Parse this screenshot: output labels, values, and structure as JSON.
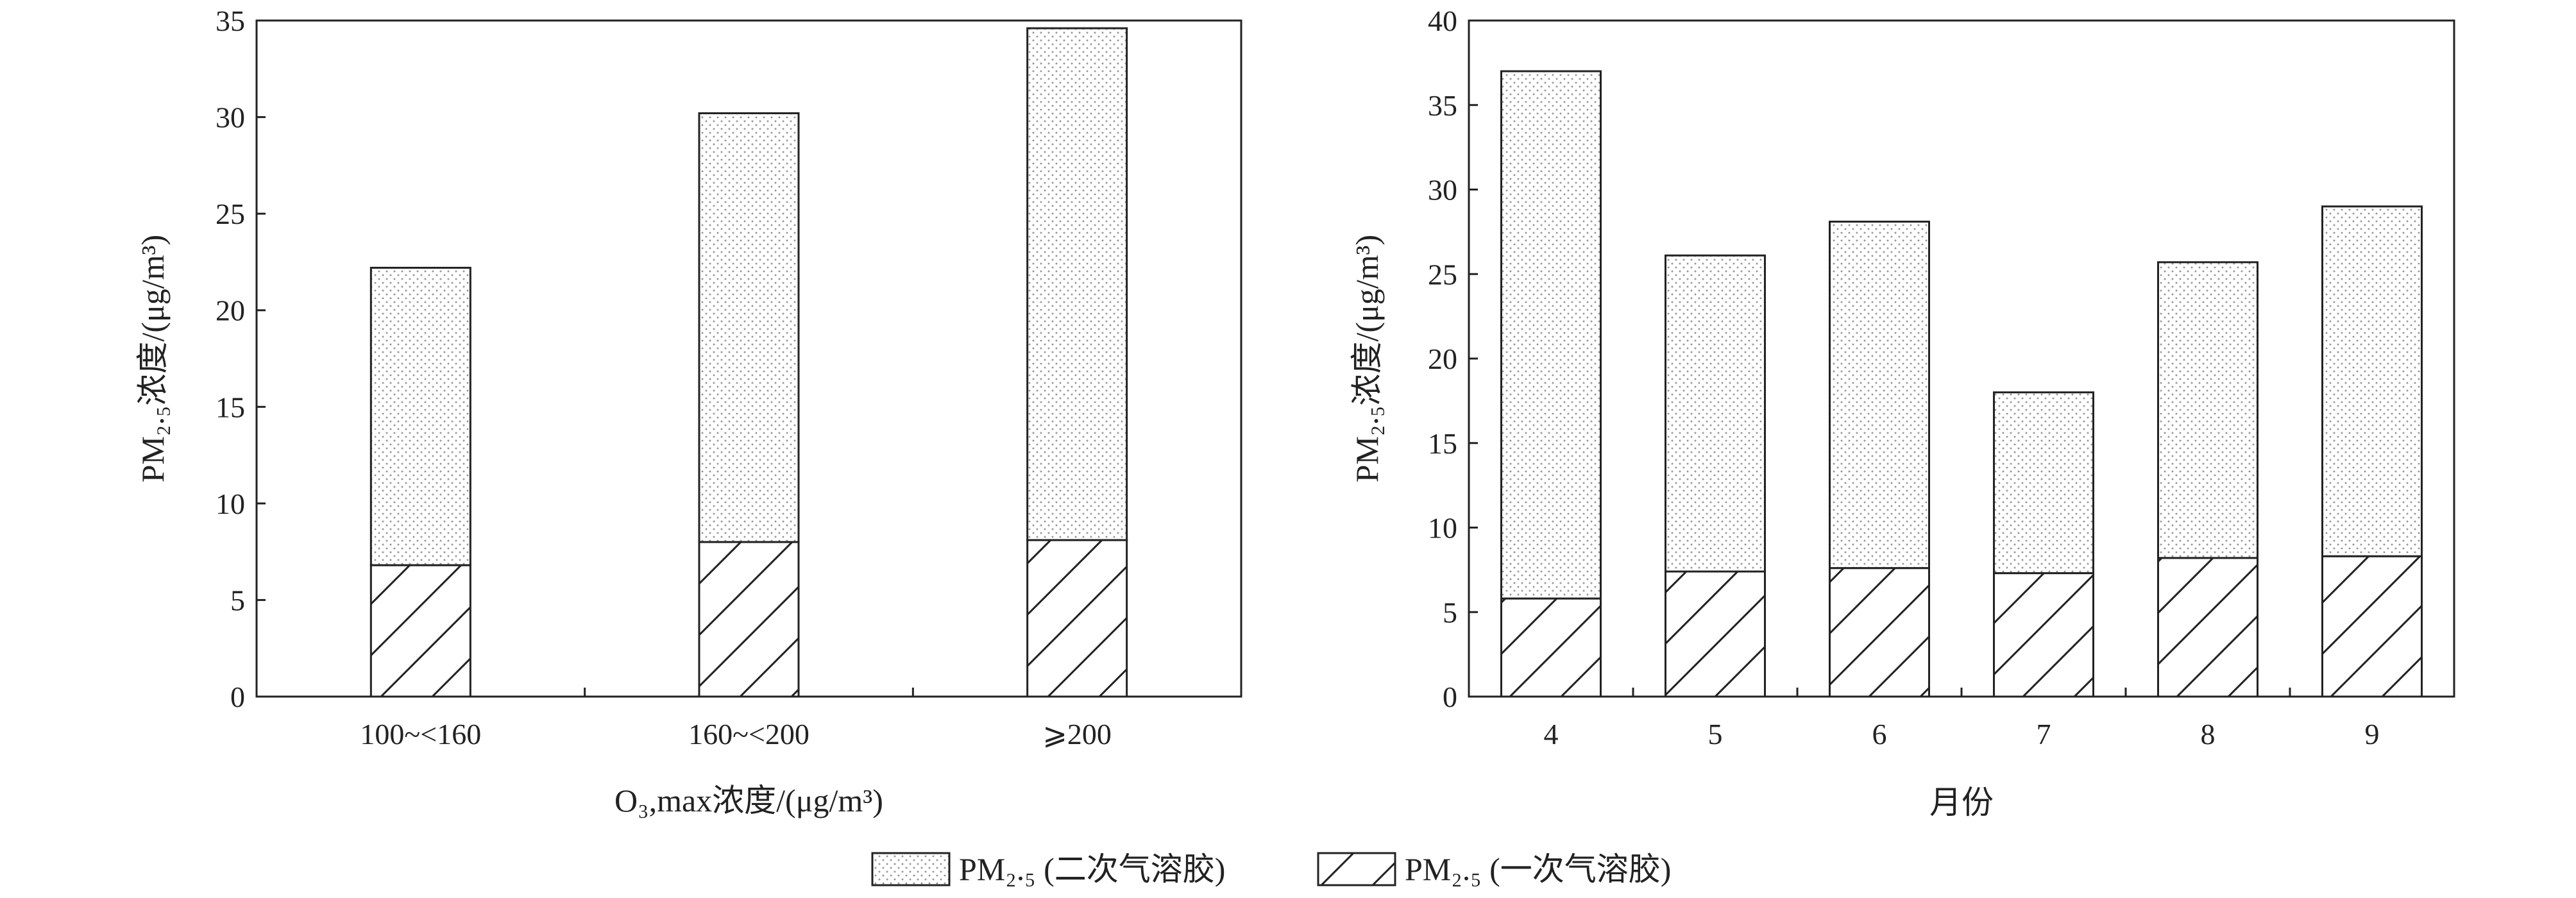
{
  "legend": {
    "secondary_label": "PM₂.₅ (二次气溶胶)",
    "primary_label": "PM₂.₅ (一次气溶胶)"
  },
  "chart_data": [
    {
      "type": "bar",
      "stacked": true,
      "categories": [
        "100~<160",
        "160~<200",
        "⩾200"
      ],
      "series": [
        {
          "name": "PM₂.₅ (一次气溶胶)",
          "pattern": "diagonal-hatch",
          "values": [
            6.8,
            8.0,
            8.1
          ]
        },
        {
          "name": "PM₂.₅ (二次气溶胶)",
          "pattern": "dots",
          "values": [
            15.4,
            22.2,
            26.5
          ]
        }
      ],
      "totals": [
        22.2,
        30.2,
        34.6
      ],
      "xlabel": "O₃,max浓度/(μg/m³)",
      "ylabel": "PM₂.₅浓度/(μg/m³)",
      "ylim": [
        0,
        35
      ],
      "yticks": [
        0,
        5,
        10,
        15,
        20,
        25,
        30,
        35
      ],
      "grid": false
    },
    {
      "type": "bar",
      "stacked": true,
      "categories": [
        "4",
        "5",
        "6",
        "7",
        "8",
        "9"
      ],
      "series": [
        {
          "name": "PM₂.₅ (一次气溶胶)",
          "pattern": "diagonal-hatch",
          "values": [
            5.8,
            7.4,
            7.6,
            7.3,
            8.2,
            8.3
          ]
        },
        {
          "name": "PM₂.₅ (二次气溶胶)",
          "pattern": "dots",
          "values": [
            31.2,
            18.7,
            20.5,
            10.7,
            17.5,
            20.7
          ]
        }
      ],
      "totals": [
        37.0,
        26.1,
        28.1,
        18.0,
        25.7,
        29.0
      ],
      "xlabel": "月份",
      "ylabel": "PM₂.₅浓度/(μg/m³)",
      "ylim": [
        0,
        40
      ],
      "yticks": [
        0,
        5,
        10,
        15,
        20,
        25,
        30,
        35,
        40
      ],
      "grid": false
    }
  ]
}
